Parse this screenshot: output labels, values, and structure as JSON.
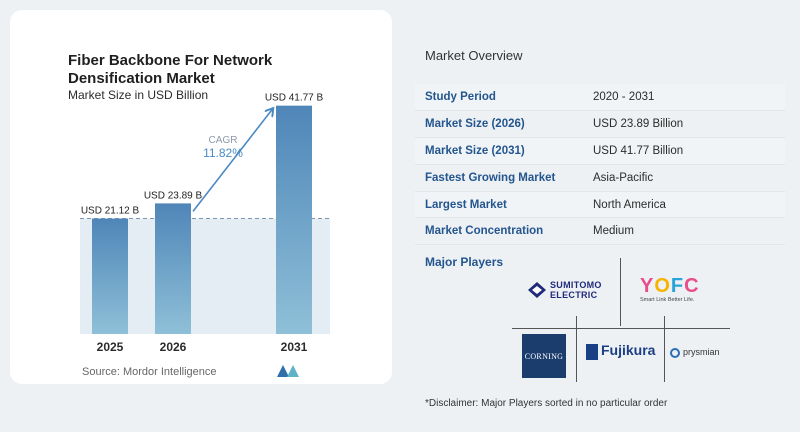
{
  "chart_data": {
    "type": "bar",
    "title": "Fiber Backbone For Network Densification Market",
    "subtitle": "Market Size in USD Billion",
    "categories": [
      "2025",
      "2026",
      "2031"
    ],
    "values": [
      21.12,
      23.89,
      41.77
    ],
    "value_labels": [
      "USD 21.12 B",
      "USD 23.89 B",
      "USD 41.77 B"
    ],
    "cagr_label": "CAGR",
    "cagr_value": "11.82%",
    "ylim": [
      0,
      45
    ],
    "colors": {
      "bar_top": "#4f86b8",
      "bar_bottom": "#8fc0d8",
      "accent": "#4a8ac4",
      "band": "#e4ecf4"
    }
  },
  "source": "Source:  Mordor Intelligence",
  "overview": {
    "title": "Market Overview",
    "rows": [
      {
        "label": "Study Period",
        "value": "2020 - 2031"
      },
      {
        "label": "Market Size (2026)",
        "value": "USD 23.89 Billion"
      },
      {
        "label": "Market Size (2031)",
        "value": "USD 41.77 Billion"
      },
      {
        "label": "Fastest Growing Market",
        "value": "Asia-Pacific"
      },
      {
        "label": "Largest Market",
        "value": "North America"
      },
      {
        "label": "Market Concentration",
        "value": "Medium"
      }
    ]
  },
  "players": {
    "title": "Major Players",
    "sumitomo": "SUMITOMO ELECTRIC",
    "yofc": "YOFC",
    "yofc_tagline": "Smart Link Better Life.",
    "corning": "CORNING",
    "fujikura": "Fujikura",
    "prysmian": "prysmian"
  },
  "disclaimer": "*Disclaimer: Major Players sorted in no particular order"
}
